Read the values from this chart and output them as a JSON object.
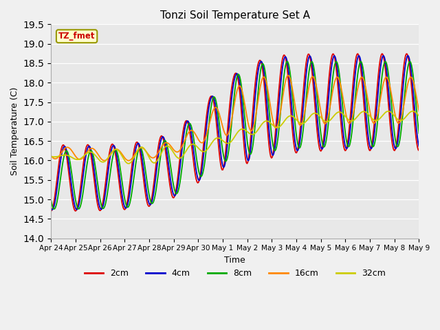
{
  "title": "Tonzi Soil Temperature Set A",
  "xlabel": "Time",
  "ylabel": "Soil Temperature (C)",
  "ylim": [
    14.0,
    19.5
  ],
  "yticks": [
    14.0,
    14.5,
    15.0,
    15.5,
    16.0,
    16.5,
    17.0,
    17.5,
    18.0,
    18.5,
    19.0,
    19.5
  ],
  "fig_bg": "#f0f0f0",
  "plot_bg": "#e8e8e8",
  "legend_label": "TZ_fmet",
  "series_colors": {
    "2cm": "#dd0000",
    "4cm": "#0000cc",
    "8cm": "#00aa00",
    "16cm": "#ff8800",
    "32cm": "#cccc00"
  },
  "xtick_labels": [
    "Apr 24",
    "Apr 25",
    "Apr 26",
    "Apr 27",
    "Apr 28",
    "Apr 29",
    "Apr 30",
    "May 1",
    "May 2",
    "May 3",
    "May 4",
    "May 5",
    "May 6",
    "May 7",
    "May 8",
    "May 9"
  ],
  "legend_items": [
    "2cm",
    "4cm",
    "8cm",
    "16cm",
    "32cm"
  ]
}
